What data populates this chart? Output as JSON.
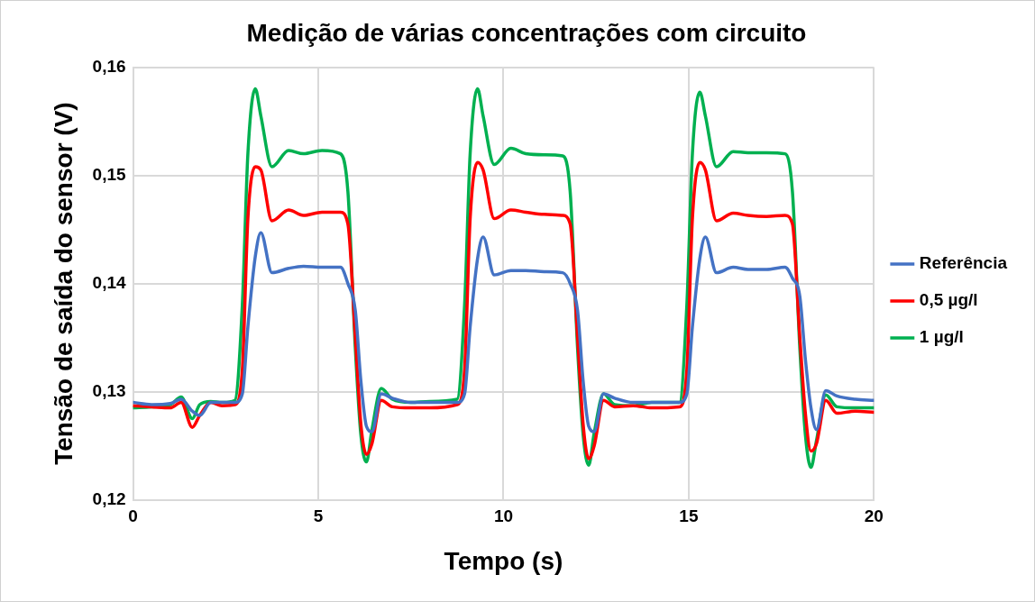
{
  "chart_data": {
    "type": "line",
    "title": "Medição de várias concentrações com circuito",
    "xlabel": "Tempo (s)",
    "ylabel": "Tensão de saída do sensor (V)",
    "x": [
      0,
      0.5,
      1,
      1.3,
      1.6,
      1.8,
      2.1,
      2.4,
      2.75,
      2.95,
      3.1,
      3.3,
      3.45,
      3.75,
      4.2,
      4.6,
      5.1,
      5.6,
      5.8,
      6,
      6.15,
      6.3,
      6.45,
      6.7,
      7,
      7.5,
      8,
      8.75,
      8.95,
      9.1,
      9.3,
      9.45,
      9.75,
      10.2,
      10.6,
      11.1,
      11.6,
      11.8,
      12,
      12.15,
      12.3,
      12.45,
      12.7,
      13,
      13.5,
      14,
      14.75,
      14.95,
      15.1,
      15.3,
      15.45,
      15.75,
      16.2,
      16.6,
      17.1,
      17.6,
      17.8,
      18,
      18.15,
      18.3,
      18.45,
      18.7,
      19,
      19.5,
      20
    ],
    "series": [
      {
        "name": "Referência",
        "color": "#4472c4",
        "values": [
          0.129,
          0.1288,
          0.1289,
          0.1293,
          0.1282,
          0.1278,
          0.129,
          0.129,
          0.129,
          0.1298,
          0.136,
          0.1425,
          0.1447,
          0.141,
          0.1414,
          0.1416,
          0.1415,
          0.1415,
          0.14,
          0.1375,
          0.131,
          0.1268,
          0.1263,
          0.1298,
          0.1294,
          0.129,
          0.129,
          0.129,
          0.1298,
          0.136,
          0.1423,
          0.1443,
          0.1408,
          0.1412,
          0.1412,
          0.1411,
          0.141,
          0.14,
          0.1375,
          0.131,
          0.1268,
          0.1263,
          0.1298,
          0.1294,
          0.129,
          0.129,
          0.129,
          0.1298,
          0.136,
          0.1423,
          0.1443,
          0.141,
          0.1415,
          0.1413,
          0.1413,
          0.1415,
          0.1405,
          0.1388,
          0.133,
          0.1285,
          0.1265,
          0.1301,
          0.1296,
          0.1293,
          0.1292
        ]
      },
      {
        "name": "0,5 µg/l",
        "color": "#ff0000",
        "values": [
          0.1287,
          0.1286,
          0.1285,
          0.129,
          0.1267,
          0.1278,
          0.129,
          0.1287,
          0.1288,
          0.132,
          0.146,
          0.1508,
          0.1505,
          0.1458,
          0.1468,
          0.1463,
          0.1466,
          0.1466,
          0.1455,
          0.135,
          0.127,
          0.1242,
          0.1252,
          0.1292,
          0.1286,
          0.1285,
          0.1285,
          0.1288,
          0.132,
          0.146,
          0.1512,
          0.1505,
          0.146,
          0.1468,
          0.1466,
          0.1464,
          0.1463,
          0.1455,
          0.135,
          0.127,
          0.1238,
          0.125,
          0.1292,
          0.1286,
          0.1287,
          0.1285,
          0.1286,
          0.132,
          0.146,
          0.1512,
          0.1505,
          0.1458,
          0.1465,
          0.1463,
          0.1462,
          0.1463,
          0.1455,
          0.135,
          0.128,
          0.1245,
          0.1252,
          0.1292,
          0.128,
          0.1282,
          0.1281
        ]
      },
      {
        "name": "1 µg/l",
        "color": "#00b050",
        "values": [
          0.1285,
          0.1286,
          0.1288,
          0.1295,
          0.1275,
          0.1288,
          0.1291,
          0.129,
          0.1292,
          0.138,
          0.152,
          0.158,
          0.1555,
          0.1508,
          0.1523,
          0.152,
          0.1523,
          0.152,
          0.1485,
          0.134,
          0.126,
          0.1235,
          0.1265,
          0.1303,
          0.1293,
          0.129,
          0.1291,
          0.1293,
          0.138,
          0.152,
          0.158,
          0.1555,
          0.151,
          0.1525,
          0.152,
          0.1519,
          0.1518,
          0.1485,
          0.134,
          0.126,
          0.1232,
          0.1262,
          0.1298,
          0.1288,
          0.1287,
          0.129,
          0.129,
          0.138,
          0.152,
          0.1577,
          0.1555,
          0.1508,
          0.1522,
          0.1521,
          0.1521,
          0.152,
          0.1485,
          0.134,
          0.126,
          0.123,
          0.1255,
          0.1297,
          0.1286,
          0.1285,
          0.1285
        ]
      }
    ],
    "xlim": [
      0,
      20
    ],
    "xticks": [
      0,
      5,
      10,
      15,
      20
    ],
    "ylim": [
      0.12,
      0.16
    ],
    "yticks": [
      {
        "value": 0.12,
        "label": "0,12"
      },
      {
        "value": 0.13,
        "label": "0,13"
      },
      {
        "value": 0.14,
        "label": "0,14"
      },
      {
        "value": 0.15,
        "label": "0,15"
      },
      {
        "value": 0.16,
        "label": "0,16"
      }
    ],
    "grid": true,
    "legend": "right",
    "marker": "none",
    "line_style": "solid"
  }
}
